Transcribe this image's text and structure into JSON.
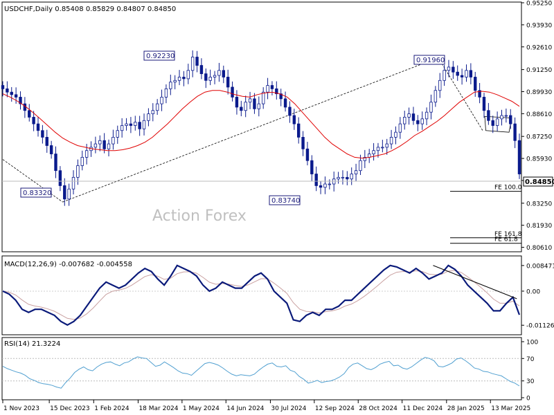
{
  "chart_data": [
    {
      "type": "candlestick",
      "title": "USDCHF,Daily  0.85408 0.85829 0.84807 0.84850",
      "watermark": "Action Forex",
      "price_label": "0.84850",
      "ylim": [
        0.80384,
        0.9525
      ],
      "yticks": [
        {
          "value": 0.9525,
          "label": "0.95250"
        },
        {
          "value": 0.9393,
          "label": "0.93930"
        },
        {
          "value": 0.9261,
          "label": "0.92610"
        },
        {
          "value": 0.9125,
          "label": "0.91250"
        },
        {
          "value": 0.8993,
          "label": "0.89930"
        },
        {
          "value": 0.8861,
          "label": "0.88610"
        },
        {
          "value": 0.8725,
          "label": "0.87250"
        },
        {
          "value": 0.8593,
          "label": "0.85930"
        },
        {
          "value": 0.8461,
          "label": "0.84610"
        },
        {
          "value": 0.8325,
          "label": "0.83250"
        },
        {
          "value": 0.8193,
          "label": "0.81930"
        },
        {
          "value": 0.8061,
          "label": "0.80610"
        }
      ],
      "callouts": [
        {
          "label": "0.83320",
          "value": 0.8332,
          "t": 0.116
        },
        {
          "label": "0.92230",
          "value": 0.9223,
          "t": 0.318
        },
        {
          "label": "0.83740",
          "value": 0.8374,
          "t": 0.562
        },
        {
          "label": "0.91960",
          "value": 0.9196,
          "t": 0.843
        }
      ],
      "fe_levels": [
        {
          "label": "FE 100.0",
          "value": 0.8396
        },
        {
          "label": "FE 161.8",
          "value": 0.8118
        },
        {
          "label": "FE 61.8",
          "value": 0.8085
        }
      ],
      "close_series": [
        0.901,
        0.899,
        0.8975,
        0.896,
        0.892,
        0.888,
        0.884,
        0.88,
        0.876,
        0.872,
        0.867,
        0.862,
        0.852,
        0.843,
        0.835,
        0.841,
        0.848,
        0.855,
        0.86,
        0.864,
        0.866,
        0.868,
        0.87,
        0.865,
        0.868,
        0.872,
        0.876,
        0.879,
        0.88,
        0.879,
        0.881,
        0.877,
        0.882,
        0.886,
        0.888,
        0.892,
        0.896,
        0.901,
        0.905,
        0.906,
        0.908,
        0.907,
        0.912,
        0.92,
        0.915,
        0.91,
        0.906,
        0.908,
        0.909,
        0.912,
        0.908,
        0.902,
        0.896,
        0.89,
        0.888,
        0.893,
        0.895,
        0.889,
        0.892,
        0.899,
        0.903,
        0.901,
        0.898,
        0.895,
        0.89,
        0.885,
        0.88,
        0.872,
        0.865,
        0.858,
        0.85,
        0.843,
        0.842,
        0.844,
        0.844,
        0.847,
        0.848,
        0.848,
        0.847,
        0.85,
        0.852,
        0.858,
        0.86,
        0.862,
        0.864,
        0.866,
        0.866,
        0.868,
        0.872,
        0.875,
        0.88,
        0.884,
        0.886,
        0.882,
        0.88,
        0.883,
        0.887,
        0.893,
        0.9,
        0.906,
        0.912,
        0.914,
        0.911,
        0.909,
        0.908,
        0.912,
        0.908,
        0.9,
        0.896,
        0.888,
        0.882,
        0.879,
        0.883,
        0.885,
        0.885,
        0.88,
        0.87,
        0.85
      ],
      "ma_series": [
        0.898,
        0.896,
        0.8935,
        0.8905,
        0.887,
        0.883,
        0.879,
        0.875,
        0.8715,
        0.869,
        0.867,
        0.866,
        0.865,
        0.8645,
        0.864,
        0.864,
        0.8645,
        0.8655,
        0.867,
        0.869,
        0.872,
        0.876,
        0.88,
        0.8845,
        0.889,
        0.893,
        0.8965,
        0.899,
        0.9,
        0.9,
        0.899,
        0.8975,
        0.8965,
        0.896,
        0.8975,
        0.8985,
        0.899,
        0.898,
        0.896,
        0.892,
        0.887,
        0.882,
        0.877,
        0.872,
        0.868,
        0.865,
        0.862,
        0.86,
        0.8595,
        0.86,
        0.861,
        0.862,
        0.864,
        0.8665,
        0.8695,
        0.873,
        0.8755,
        0.8785,
        0.8815,
        0.885,
        0.889,
        0.893,
        0.896,
        0.899,
        0.8995,
        0.899,
        0.8975,
        0.8955,
        0.8935,
        0.8905
      ],
      "ma_t_range": [
        0.0,
        1.0
      ]
    },
    {
      "type": "line",
      "title": "MACD(12,26,9) -0.007682 -0.004558",
      "ylim": [
        -0.0135,
        0.0105
      ],
      "yticks": [
        {
          "value": 0.008471,
          "label": "0.008471"
        },
        {
          "value": 0.0,
          "label": "0.00"
        },
        {
          "value": -0.011265,
          "label": "-0.011265"
        }
      ],
      "macd": [
        0.0,
        -0.001,
        -0.003,
        -0.006,
        -0.007,
        -0.006,
        -0.006,
        -0.007,
        -0.008,
        -0.01,
        -0.0112,
        -0.01,
        -0.008,
        -0.005,
        -0.002,
        0.001,
        0.003,
        0.002,
        0.001,
        0.002,
        0.004,
        0.006,
        0.0075,
        0.0065,
        0.004,
        0.002,
        0.005,
        0.0085,
        0.0075,
        0.0065,
        0.005,
        0.002,
        0.0,
        0.001,
        0.003,
        0.002,
        0.001,
        0.001,
        0.003,
        0.005,
        0.006,
        0.004,
        0.0,
        -0.002,
        -0.004,
        -0.0095,
        -0.01,
        -0.008,
        -0.007,
        -0.008,
        -0.006,
        -0.006,
        -0.005,
        -0.003,
        -0.003,
        -0.001,
        0.001,
        0.003,
        0.005,
        0.007,
        0.0085,
        0.008,
        0.007,
        0.006,
        0.0075,
        0.006,
        0.004,
        0.005,
        0.006,
        0.0085,
        0.0072,
        0.005,
        0.002,
        0.0,
        -0.002,
        -0.004,
        -0.0065,
        -0.0065,
        -0.004,
        -0.002,
        -0.0078
      ]
    },
    {
      "type": "line",
      "title": "RSI(14) 21.3224",
      "ylim": [
        0,
        100
      ],
      "yticks": [
        {
          "value": 100,
          "label": "100"
        },
        {
          "value": 70,
          "label": "70"
        },
        {
          "value": 30,
          "label": "30"
        },
        {
          "value": 0,
          "label": "0"
        }
      ],
      "rsi": [
        56,
        52,
        49,
        46,
        44,
        40,
        34,
        31,
        27,
        25,
        24,
        22,
        19,
        17,
        27,
        35,
        45,
        51,
        55,
        50,
        48,
        55,
        60,
        63,
        64,
        60,
        57,
        62,
        64,
        69,
        73,
        71,
        70,
        63,
        56,
        58,
        64,
        59,
        54,
        48,
        44,
        43,
        40,
        47,
        54,
        61,
        63,
        61,
        58,
        53,
        47,
        42,
        39,
        41,
        40,
        39,
        42,
        49,
        55,
        60,
        62,
        56,
        55,
        57,
        49,
        46,
        38,
        33,
        26,
        28,
        31,
        27,
        29,
        30,
        33,
        37,
        43,
        54,
        60,
        62,
        57,
        52,
        50,
        54,
        60,
        63,
        65,
        57,
        58,
        53,
        51,
        55,
        61,
        67,
        72,
        70,
        66,
        56,
        55,
        58,
        62,
        69,
        71,
        66,
        60,
        53,
        51,
        47,
        46,
        43,
        41,
        39,
        34,
        29,
        26,
        21
      ]
    }
  ],
  "x_axis": {
    "labels": [
      {
        "label": "1 Nov 2023",
        "t": 0.0
      },
      {
        "label": "15 Dec 2023",
        "t": 0.09
      },
      {
        "label": "1 Feb 2024",
        "t": 0.176
      },
      {
        "label": "18 Mar 2024",
        "t": 0.262
      },
      {
        "label": "1 May 2024",
        "t": 0.347
      },
      {
        "label": "14 Jun 2024",
        "t": 0.432
      },
      {
        "label": "30 Jul 2024",
        "t": 0.518
      },
      {
        "label": "12 Sep 2024",
        "t": 0.603
      },
      {
        "label": "28 Oct 2024",
        "t": 0.688
      },
      {
        "label": "11 Dec 2024",
        "t": 0.773
      },
      {
        "label": "28 Jan 2025",
        "t": 0.859
      },
      {
        "label": "13 Mar 2025",
        "t": 0.944
      }
    ]
  },
  "colors": {
    "bull": "#0a1a8c",
    "bear": "#0a1a8c",
    "ma": "#e00000",
    "macd": "#0a1a7a",
    "signal": "#c9a0a0",
    "rsi": "#4f9fd0",
    "label_border": "#1a1a7a",
    "watermark": "#c0c0c0"
  }
}
